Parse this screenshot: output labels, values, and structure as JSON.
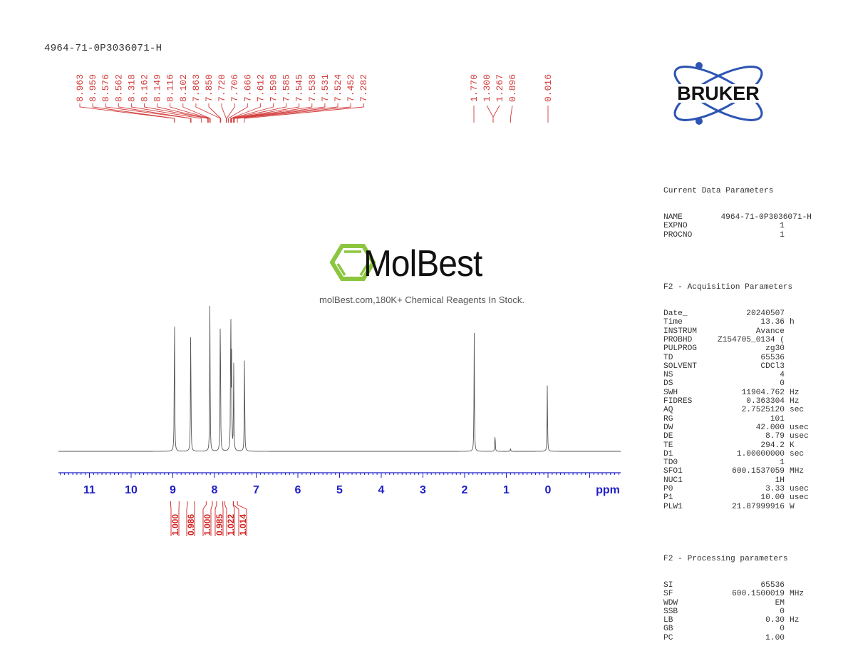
{
  "title": "4964-71-0P3036071-H",
  "watermark": {
    "brand": "MolBest",
    "tagline": "molBest.com,180K+ Chemical Reagents In Stock.",
    "accent_color": "#8cc63f"
  },
  "logo": {
    "text": "BRUKER",
    "orbit_color": "#2e55b4"
  },
  "colors": {
    "peak_label": "#d23c3c",
    "axis": "#1e1ec8",
    "spectrum": "#555555",
    "integral": "#d21e1e"
  },
  "parameters": {
    "current": {
      "heading": "Current Data Parameters",
      "rows": [
        {
          "key": "NAME",
          "value": "4964-71-0P3036071-H",
          "unit": ""
        },
        {
          "key": "EXPNO",
          "value": "1",
          "unit": ""
        },
        {
          "key": "PROCNO",
          "value": "1",
          "unit": ""
        }
      ]
    },
    "acquisition": {
      "heading": "F2 - Acquisition Parameters",
      "rows": [
        {
          "key": "Date_",
          "value": "20240507",
          "unit": ""
        },
        {
          "key": "Time",
          "value": "13.36",
          "unit": "h"
        },
        {
          "key": "INSTRUM",
          "value": "Avance",
          "unit": ""
        },
        {
          "key": "PROBHD",
          "value": "Z154705_0134 (",
          "unit": ""
        },
        {
          "key": "PULPROG",
          "value": "zg30",
          "unit": ""
        },
        {
          "key": "TD",
          "value": "65536",
          "unit": ""
        },
        {
          "key": "SOLVENT",
          "value": "CDCl3",
          "unit": ""
        },
        {
          "key": "NS",
          "value": "4",
          "unit": ""
        },
        {
          "key": "DS",
          "value": "0",
          "unit": ""
        },
        {
          "key": "SWH",
          "value": "11904.762",
          "unit": "Hz"
        },
        {
          "key": "FIDRES",
          "value": "0.363304",
          "unit": "Hz"
        },
        {
          "key": "AQ",
          "value": "2.7525120",
          "unit": "sec"
        },
        {
          "key": "RG",
          "value": "101",
          "unit": ""
        },
        {
          "key": "DW",
          "value": "42.000",
          "unit": "usec"
        },
        {
          "key": "DE",
          "value": "8.79",
          "unit": "usec"
        },
        {
          "key": "TE",
          "value": "294.2",
          "unit": "K"
        },
        {
          "key": "D1",
          "value": "1.00000000",
          "unit": "sec"
        },
        {
          "key": "TD0",
          "value": "1",
          "unit": ""
        },
        {
          "key": "SFO1",
          "value": "600.1537059",
          "unit": "MHz"
        },
        {
          "key": "NUC1",
          "value": "1H",
          "unit": ""
        },
        {
          "key": "P0",
          "value": "3.33",
          "unit": "usec"
        },
        {
          "key": "P1",
          "value": "10.00",
          "unit": "usec"
        },
        {
          "key": "PLW1",
          "value": "21.87999916",
          "unit": "W"
        }
      ]
    },
    "processing": {
      "heading": "F2 - Processing parameters",
      "rows": [
        {
          "key": "SI",
          "value": "65536",
          "unit": ""
        },
        {
          "key": "SF",
          "value": "600.1500019",
          "unit": "MHz"
        },
        {
          "key": "WDW",
          "value": "EM",
          "unit": ""
        },
        {
          "key": "SSB",
          "value": "0",
          "unit": ""
        },
        {
          "key": "LB",
          "value": "0.30",
          "unit": "Hz"
        },
        {
          "key": "GB",
          "value": "0",
          "unit": ""
        },
        {
          "key": "PC",
          "value": "1.00",
          "unit": ""
        }
      ]
    }
  },
  "chart_data": {
    "type": "line",
    "title": "4964-71-0P3036071-H",
    "xlabel": "ppm",
    "ylabel": "",
    "xlim": [
      11.7,
      -1.7
    ],
    "x_reversed": true,
    "grid": false,
    "x_ticks": [
      11,
      10,
      9,
      8,
      7,
      6,
      5,
      4,
      3,
      2,
      1,
      0
    ],
    "peak_labels_aromatic": [
      "8.963",
      "8.959",
      "8.576",
      "8.562",
      "8.318",
      "8.162",
      "8.149",
      "8.116",
      "8.102",
      "7.863",
      "7.850",
      "7.720",
      "7.706",
      "7.666",
      "7.612",
      "7.598",
      "7.585",
      "7.545",
      "7.538",
      "7.531",
      "7.524",
      "7.452",
      "7.282"
    ],
    "peak_labels_aliphatic": [
      "1.770",
      "1.300",
      "1.267",
      "0.896",
      "0.016"
    ],
    "peaks": [
      {
        "ppm": 8.96,
        "rel_height": 0.95
      },
      {
        "ppm": 8.57,
        "rel_height": 0.86
      },
      {
        "ppm": 8.11,
        "rel_height": 0.95
      },
      {
        "ppm": 7.86,
        "rel_height": 1.0
      },
      {
        "ppm": 7.61,
        "rel_height": 0.98
      },
      {
        "ppm": 7.59,
        "rel_height": 0.56
      },
      {
        "ppm": 7.54,
        "rel_height": 0.58
      },
      {
        "ppm": 7.28,
        "rel_height": 0.64
      },
      {
        "ppm": 1.77,
        "rel_height": 0.76
      },
      {
        "ppm": 1.27,
        "rel_height": 0.12
      },
      {
        "ppm": 0.9,
        "rel_height": 0.02
      },
      {
        "ppm": 0.016,
        "rel_height": 0.43
      }
    ],
    "integrals": [
      {
        "range": [
          9.05,
          8.85
        ],
        "value": "1.000"
      },
      {
        "range": [
          8.65,
          8.48
        ],
        "value": "0.986"
      },
      {
        "range": [
          8.2,
          8.05
        ],
        "value": "1.000"
      },
      {
        "range": [
          7.95,
          7.8
        ],
        "value": "0.985"
      },
      {
        "range": [
          7.75,
          7.55
        ],
        "value": "1.022"
      },
      {
        "range": [
          7.55,
          7.45
        ],
        "value": "1.014"
      }
    ]
  }
}
